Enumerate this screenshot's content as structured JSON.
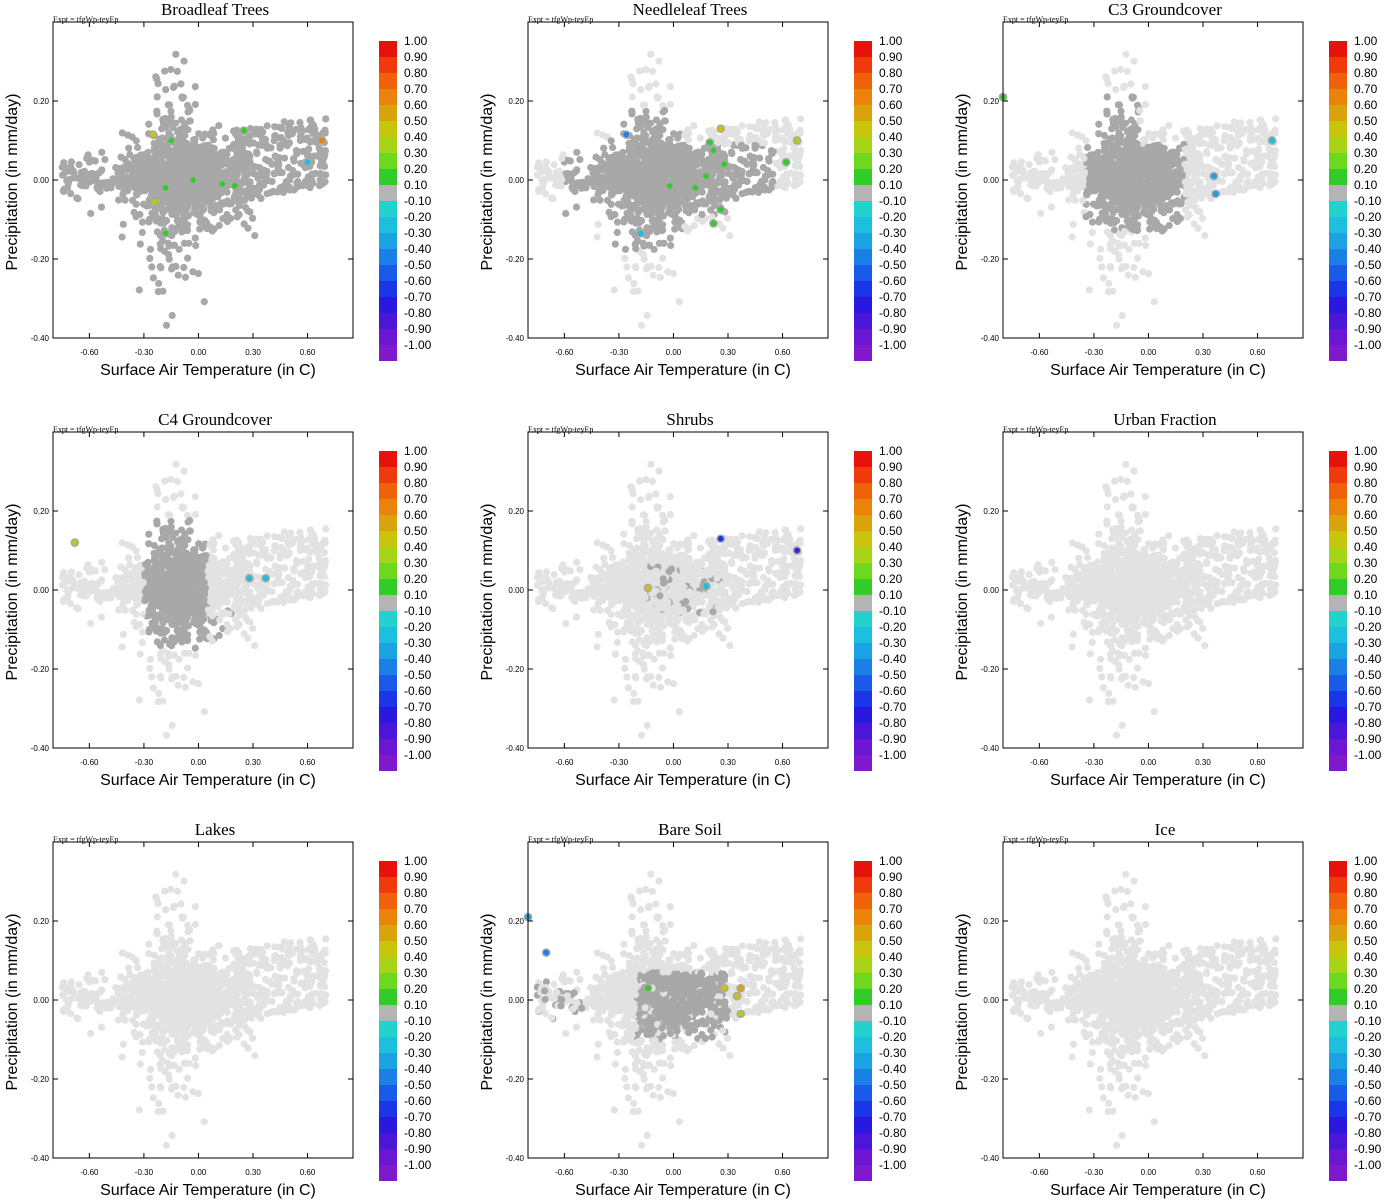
{
  "figure": {
    "expt_label": "Expt = tfgWp-teyEp",
    "xlabel": "Surface Air Temperature (in C)",
    "ylabel": "Precipitation (in mm/day)",
    "xlim": [
      -0.8,
      0.85
    ],
    "ylim": [
      -0.4,
      0.4
    ],
    "x_ticks": [
      "-0.60",
      "-0.30",
      "0.00",
      "0.30",
      "0.60"
    ],
    "x_tick_values": [
      -0.6,
      -0.3,
      0.0,
      0.3,
      0.6
    ],
    "y_ticks": [
      "0.20",
      "0.00",
      "-0.20",
      "-0.40"
    ],
    "y_tick_values": [
      0.2,
      0.0,
      -0.2,
      -0.4
    ],
    "colorbar_labels": [
      "1.00",
      "0.90",
      "0.80",
      "0.70",
      "0.60",
      "0.50",
      "0.40",
      "0.30",
      "0.20",
      "0.10",
      "-0.10",
      "-0.20",
      "-0.30",
      "-0.40",
      "-0.50",
      "-0.60",
      "-0.70",
      "-0.80",
      "-0.90",
      "-1.00"
    ],
    "colorbar_colors": [
      "#e8120c",
      "#ef3a0c",
      "#f0620a",
      "#eb830a",
      "#d9a30c",
      "#c9c40c",
      "#a8d418",
      "#6ed81e",
      "#32cc28",
      "#b4b4b4",
      "#22d2cc",
      "#1ebede",
      "#1aa2e2",
      "#1a80e6",
      "#1a5ae8",
      "#1a36e6",
      "#2818e0",
      "#4a16d8",
      "#6a16d2",
      "#8018cc"
    ],
    "colors": {
      "light_gray": "#e2e2e2",
      "dark_gray": "#a8a8a8",
      "frame": "#000000"
    }
  },
  "chart_data": [
    {
      "type": "scatter",
      "title": "Broadleaf Trees",
      "cloud_dark": "all",
      "colored_points": [
        {
          "x": -0.25,
          "y": 0.115,
          "r": 0.45
        },
        {
          "x": -0.15,
          "y": 0.1,
          "r": 0.15
        },
        {
          "x": 0.25,
          "y": 0.125,
          "r": 0.15
        },
        {
          "x": 0.68,
          "y": 0.1,
          "r": 0.65
        },
        {
          "x": 0.6,
          "y": 0.045,
          "r": -0.25
        },
        {
          "x": -0.18,
          "y": -0.02,
          "r": 0.15
        },
        {
          "x": -0.03,
          "y": 0.0,
          "r": 0.15
        },
        {
          "x": 0.13,
          "y": -0.01,
          "r": 0.15
        },
        {
          "x": 0.2,
          "y": -0.015,
          "r": 0.15
        },
        {
          "x": -0.24,
          "y": -0.055,
          "r": 0.35
        },
        {
          "x": -0.18,
          "y": -0.135,
          "r": 0.15
        }
      ]
    },
    {
      "type": "scatter",
      "title": "Needleleaf Trees",
      "cloud_dark": "core",
      "colored_points": [
        {
          "x": -0.26,
          "y": 0.115,
          "r": -0.45
        },
        {
          "x": 0.26,
          "y": 0.13,
          "r": 0.45
        },
        {
          "x": 0.68,
          "y": 0.1,
          "r": 0.35
        },
        {
          "x": 0.2,
          "y": 0.095,
          "r": 0.15
        },
        {
          "x": 0.22,
          "y": 0.075,
          "r": 0.15
        },
        {
          "x": 0.28,
          "y": 0.04,
          "r": 0.15
        },
        {
          "x": 0.62,
          "y": 0.045,
          "r": 0.15
        },
        {
          "x": 0.18,
          "y": 0.01,
          "r": 0.15
        },
        {
          "x": -0.02,
          "y": -0.015,
          "r": 0.15
        },
        {
          "x": 0.12,
          "y": -0.02,
          "r": 0.15
        },
        {
          "x": 0.26,
          "y": -0.075,
          "r": 0.15
        },
        {
          "x": 0.22,
          "y": -0.11,
          "r": 0.15
        },
        {
          "x": -0.18,
          "y": -0.135,
          "r": -0.25
        }
      ]
    },
    {
      "type": "scatter",
      "title": "C3 Groundcover",
      "cloud_dark": "c3",
      "colored_points": [
        {
          "x": -0.8,
          "y": 0.21,
          "r": 0.15
        },
        {
          "x": 0.68,
          "y": 0.1,
          "r": -0.25
        },
        {
          "x": 0.36,
          "y": 0.01,
          "r": -0.35
        },
        {
          "x": 0.37,
          "y": -0.035,
          "r": -0.35
        }
      ]
    },
    {
      "type": "scatter",
      "title": "C4 Groundcover",
      "cloud_dark": "c4",
      "colored_points": [
        {
          "x": -0.68,
          "y": 0.12,
          "r": 0.35
        },
        {
          "x": 0.28,
          "y": 0.03,
          "r": -0.25
        },
        {
          "x": 0.37,
          "y": 0.03,
          "r": -0.25
        }
      ]
    },
    {
      "type": "scatter",
      "title": "Shrubs",
      "cloud_dark": "shrubs",
      "colored_points": [
        {
          "x": 0.26,
          "y": 0.13,
          "r": -0.65
        },
        {
          "x": 0.68,
          "y": 0.1,
          "r": -0.85
        },
        {
          "x": -0.14,
          "y": 0.005,
          "r": 0.45
        },
        {
          "x": 0.18,
          "y": 0.01,
          "r": -0.25
        }
      ]
    },
    {
      "type": "scatter",
      "title": "Urban Fraction",
      "cloud_dark": "none",
      "colored_points": []
    },
    {
      "type": "scatter",
      "title": "Lakes",
      "cloud_dark": "none",
      "colored_points": []
    },
    {
      "type": "scatter",
      "title": "Bare Soil",
      "cloud_dark": "bare",
      "colored_points": [
        {
          "x": -0.8,
          "y": 0.21,
          "r": -0.35
        },
        {
          "x": -0.7,
          "y": 0.12,
          "r": -0.45
        },
        {
          "x": -0.14,
          "y": 0.03,
          "r": 0.15
        },
        {
          "x": 0.28,
          "y": 0.03,
          "r": 0.45
        },
        {
          "x": 0.37,
          "y": 0.03,
          "r": 0.6
        },
        {
          "x": 0.35,
          "y": 0.01,
          "r": 0.45
        },
        {
          "x": 0.37,
          "y": -0.035,
          "r": 0.35
        }
      ]
    },
    {
      "type": "scatter",
      "title": "Ice",
      "cloud_dark": "none",
      "colored_points": []
    }
  ]
}
